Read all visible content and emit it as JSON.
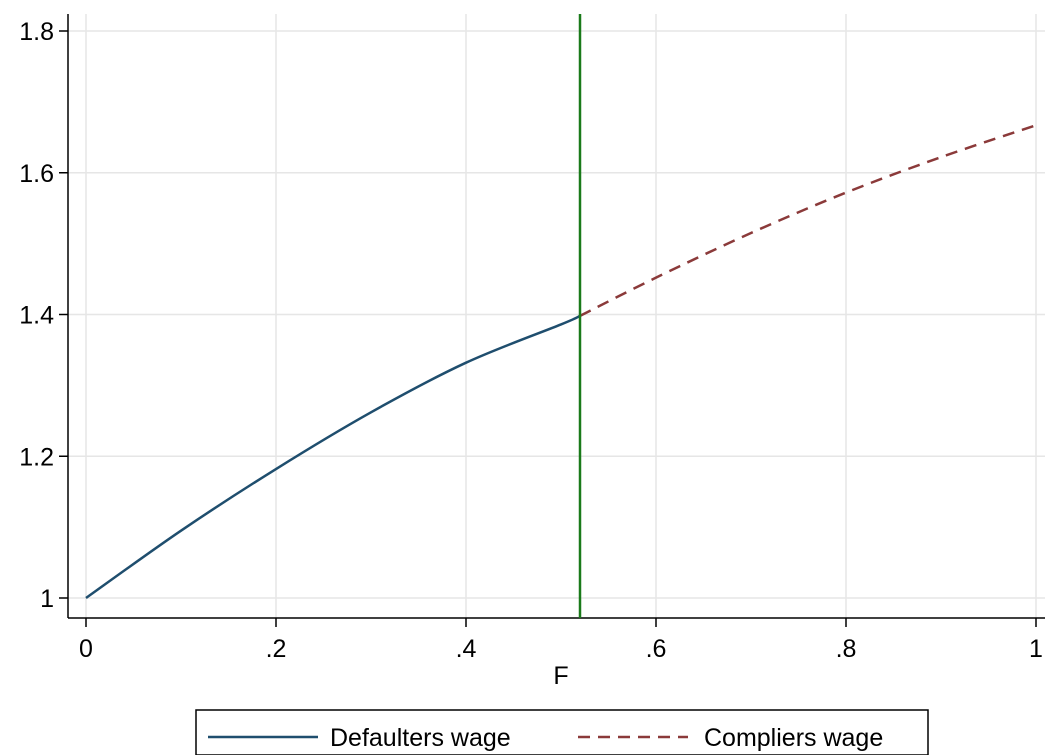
{
  "chart_data": {
    "type": "line",
    "xlabel": "F",
    "ylabel": "",
    "xlim": [
      0,
      1
    ],
    "ylim": [
      1,
      1.8
    ],
    "x_ticks": [
      {
        "value": 0,
        "label": "0"
      },
      {
        "value": 0.2,
        "label": ".2"
      },
      {
        "value": 0.4,
        "label": ".4"
      },
      {
        "value": 0.6,
        "label": ".6"
      },
      {
        "value": 0.8,
        "label": ".8"
      },
      {
        "value": 1,
        "label": "1"
      }
    ],
    "y_ticks": [
      {
        "value": 1,
        "label": "1"
      },
      {
        "value": 1.2,
        "label": "1.2"
      },
      {
        "value": 1.4,
        "label": "1.4"
      },
      {
        "value": 1.6,
        "label": "1.6"
      },
      {
        "value": 1.8,
        "label": "1.8"
      }
    ],
    "grid": true,
    "legend_position": "bottom",
    "vertical_line": {
      "x": 0.52,
      "color": "#1a7a1a"
    },
    "series": [
      {
        "name": "Defaulters wage",
        "style": "solid",
        "color": "#1f4e6e",
        "x": [
          0,
          0.1,
          0.2,
          0.3,
          0.4,
          0.5,
          0.52
        ],
        "y": [
          1.0,
          1.095,
          1.182,
          1.262,
          1.332,
          1.386,
          1.398
        ]
      },
      {
        "name": "Compliers wage",
        "style": "dashed",
        "color": "#8b3a3a",
        "x": [
          0.52,
          0.6,
          0.7,
          0.8,
          0.9,
          1.0
        ],
        "y": [
          1.398,
          1.452,
          1.515,
          1.572,
          1.622,
          1.667
        ]
      }
    ]
  }
}
